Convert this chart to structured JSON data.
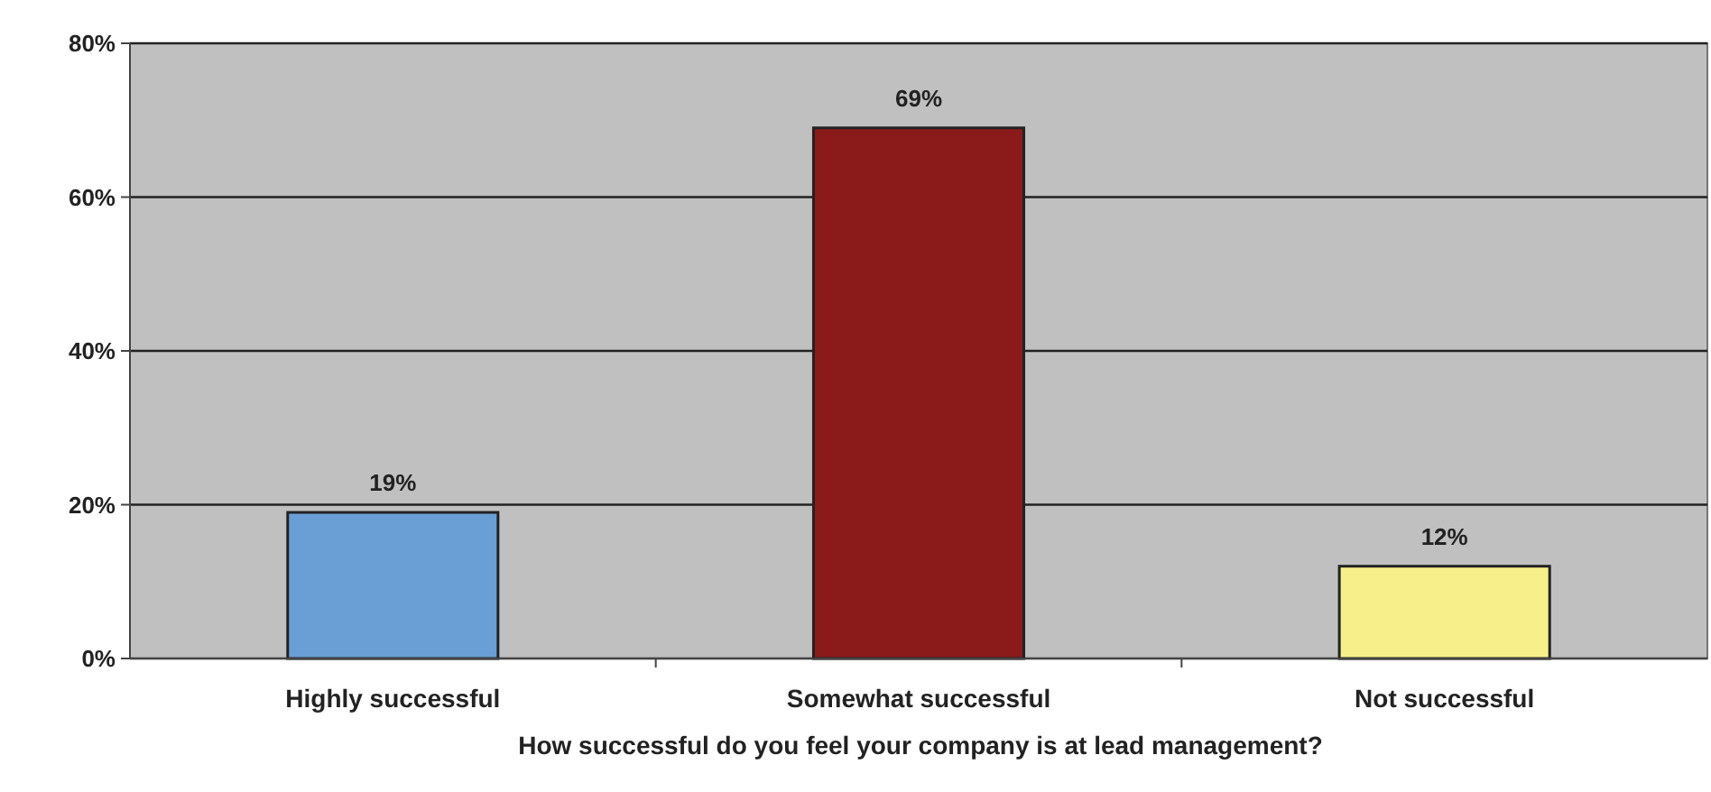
{
  "chart_data": {
    "type": "bar",
    "xlabel": "How successful do you feel your company is at lead management?",
    "categories": [
      "Highly successful",
      "Somewhat successful",
      "Not successful"
    ],
    "values": [
      19,
      69,
      12
    ],
    "colors": [
      "#6a9fd6",
      "#8b1a1a",
      "#f7f08a"
    ],
    "value_labels": [
      "19%",
      "69%",
      "12%"
    ],
    "ylim": [
      0,
      80
    ],
    "yticks": [
      {
        "value": 0,
        "label": "0%"
      },
      {
        "value": 20,
        "label": "20%"
      },
      {
        "value": 40,
        "label": "40%"
      },
      {
        "value": 60,
        "label": "60%"
      },
      {
        "value": 80,
        "label": "80%"
      }
    ],
    "grid": "y"
  }
}
